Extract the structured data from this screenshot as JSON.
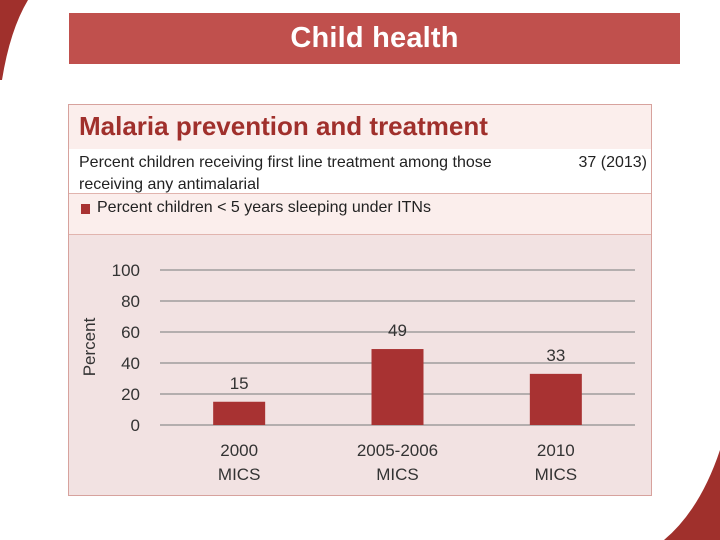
{
  "slide": {
    "title": "Child health",
    "accent_color": "#c0504d"
  },
  "panel": {
    "heading": "Malaria prevention and treatment",
    "indicator": {
      "label": "Percent children receiving first line treatment among those receiving any antimalarial",
      "value": "37 (2013)"
    },
    "legend": "Percent children < 5 years sleeping under ITNs"
  },
  "chart_data": {
    "type": "bar",
    "title": "",
    "xlabel": "",
    "ylabel": "Percent",
    "ylim": [
      0,
      100
    ],
    "yticks": [
      0,
      20,
      40,
      60,
      80,
      100
    ],
    "grid": true,
    "categories": [
      {
        "line1": "2000",
        "line2": "MICS"
      },
      {
        "line1": "2005-2006",
        "line2": "MICS"
      },
      {
        "line1": "2010",
        "line2": "MICS"
      }
    ],
    "series": [
      {
        "name": "Percent children < 5 years sleeping under ITNs",
        "values": [
          15,
          49,
          33
        ],
        "color": "#a83232"
      }
    ]
  }
}
